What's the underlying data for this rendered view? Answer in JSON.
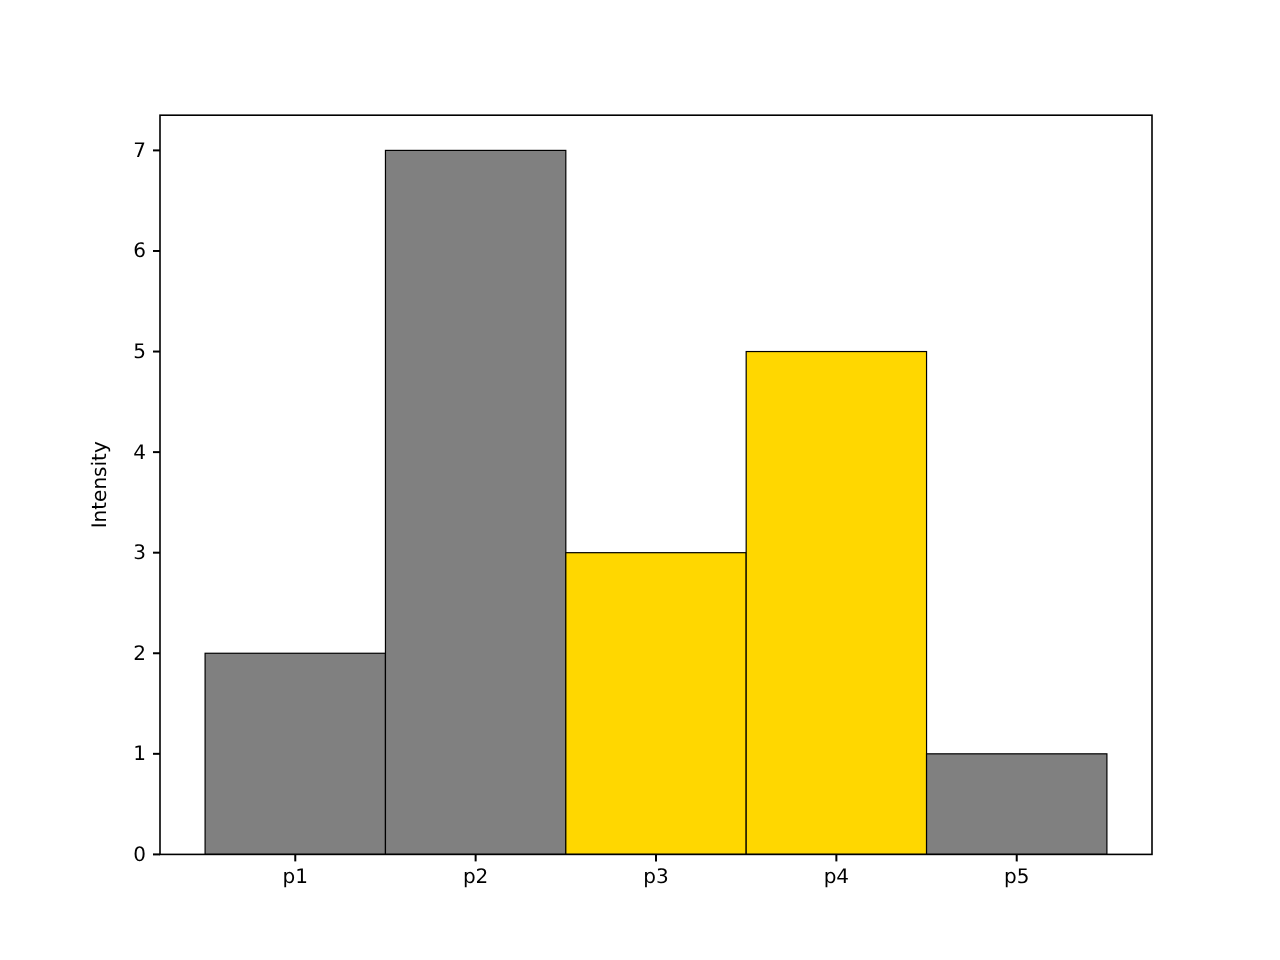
{
  "chart_data": {
    "type": "bar",
    "ylabel": "Intensity",
    "categories": [
      "p1",
      "p2",
      "p3",
      "p4",
      "p5"
    ],
    "values": [
      2,
      7,
      3,
      5,
      1
    ],
    "colors": [
      "#808080",
      "#808080",
      "#ffd700",
      "#ffd700",
      "#808080"
    ],
    "ylim": [
      0,
      7.35
    ],
    "yticks": [
      0,
      1,
      2,
      3,
      4,
      5,
      6,
      7
    ],
    "grid": false
  }
}
